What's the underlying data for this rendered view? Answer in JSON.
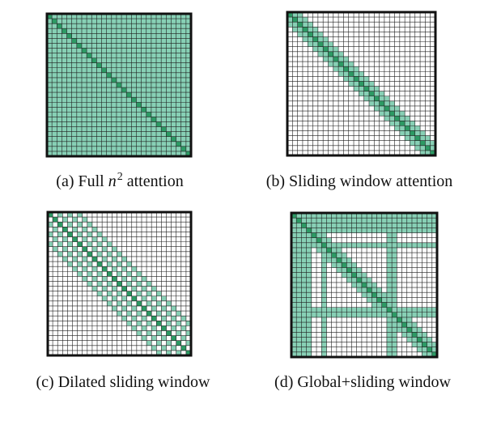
{
  "figure": {
    "colors": {
      "background": "#ffffff",
      "cell_fill": "#87d0b5",
      "diagonal_fill": "#2c9a64",
      "grid_line": "#1f1f1f",
      "border": "#111111"
    },
    "grid_cells_per_side": 29,
    "panels": [
      {
        "id": "a",
        "pattern": "full",
        "caption_parts": {
          "prefix": "(a) Full ",
          "variable": "n",
          "exponent": "2",
          "suffix": " attention"
        }
      },
      {
        "id": "b",
        "pattern": "sliding",
        "window_half_width": 2,
        "caption": "(b) Sliding window attention"
      },
      {
        "id": "c",
        "pattern": "dilated",
        "window_half_width": 6,
        "dilation": 2,
        "caption": "(c) Dilated sliding window"
      },
      {
        "id": "d",
        "pattern": "global_sliding",
        "window_half_width": 2,
        "global_indices": [
          0,
          1,
          2,
          3,
          6,
          19,
          20
        ],
        "caption": "(d) Global+sliding window"
      }
    ]
  }
}
